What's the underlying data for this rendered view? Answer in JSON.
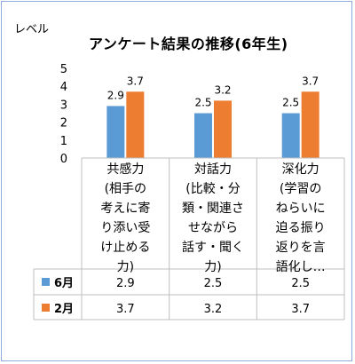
{
  "chart_data": {
    "type": "bar",
    "title": "アンケート結果の推移(6年生)",
    "ylabel": "レベル",
    "ylim": [
      0,
      5
    ],
    "yticks": [
      0,
      1,
      2,
      3,
      4,
      5
    ],
    "grid": false,
    "categories": [
      "共感力\n(相手の\n考えに寄\nり添い受\nけ止める\n力)",
      "対話力\n(比較・分\n類・関連さ\nせながら\n話す・聞く\n力)",
      "深化力\n(学習の\nねらいに\n迫る振り\n返りを言\n語化し…"
    ],
    "series": [
      {
        "name": "6月",
        "color": "#5b9bd5",
        "values": [
          2.9,
          2.5,
          2.5
        ],
        "labels": [
          "2.9",
          "2.5",
          "2.5"
        ]
      },
      {
        "name": "2月",
        "color": "#ed7d31",
        "values": [
          3.7,
          3.2,
          3.7
        ],
        "labels": [
          "3.7",
          "3.2",
          "3.7"
        ]
      }
    ],
    "data_table": true
  }
}
